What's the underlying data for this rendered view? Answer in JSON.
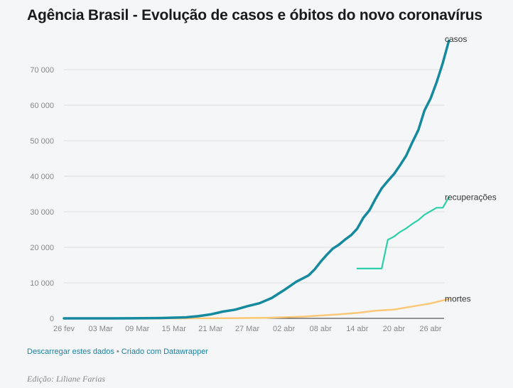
{
  "title": "Agência Brasil - Evolução de casos e óbitos do novo coronavírus",
  "footer": {
    "download_label": "Descarregar estes dados",
    "separator": "•",
    "created_label": "Criado com Datawrapper"
  },
  "credit": "Edição: Liliane Farias",
  "chart_data": {
    "type": "line",
    "title": "Agência Brasil - Evolução de casos e óbitos do novo coronavírus",
    "xlabel": "",
    "ylabel": "",
    "x_start": "2020-02-26",
    "x_ticks": [
      "26 fev",
      "03 Mar",
      "09 Mar",
      "15 Mar",
      "21 Mar",
      "27 Mar",
      "02 abr",
      "08 abr",
      "14 abr",
      "20 abr",
      "26 abr"
    ],
    "y_ticks": [
      "0",
      "10 000",
      "20 000",
      "30 000",
      "40 000",
      "50 000",
      "60 000",
      "70 000"
    ],
    "ylim": [
      0,
      70000
    ],
    "grid": "horizontal",
    "series": [
      {
        "name": "casos",
        "color": "#15899e",
        "points": [
          [
            "2020-02-26",
            1
          ],
          [
            "2020-03-01",
            2
          ],
          [
            "2020-03-05",
            8
          ],
          [
            "2020-03-08",
            25
          ],
          [
            "2020-03-10",
            34
          ],
          [
            "2020-03-13",
            98
          ],
          [
            "2020-03-15",
            200
          ],
          [
            "2020-03-17",
            291
          ],
          [
            "2020-03-19",
            621
          ],
          [
            "2020-03-21",
            1128
          ],
          [
            "2020-03-23",
            1891
          ],
          [
            "2020-03-25",
            2433
          ],
          [
            "2020-03-27",
            3417
          ],
          [
            "2020-03-29",
            4256
          ],
          [
            "2020-03-31",
            5717
          ],
          [
            "2020-04-02",
            7910
          ],
          [
            "2020-04-04",
            10278
          ],
          [
            "2020-04-06",
            12056
          ],
          [
            "2020-04-07",
            13717
          ],
          [
            "2020-04-08",
            15927
          ],
          [
            "2020-04-09",
            17857
          ],
          [
            "2020-04-10",
            19638
          ],
          [
            "2020-04-11",
            20727
          ],
          [
            "2020-04-12",
            22169
          ],
          [
            "2020-04-13",
            23430
          ],
          [
            "2020-04-14",
            25262
          ],
          [
            "2020-04-15",
            28320
          ],
          [
            "2020-04-16",
            30425
          ],
          [
            "2020-04-17",
            33682
          ],
          [
            "2020-04-18",
            36599
          ],
          [
            "2020-04-19",
            38654
          ],
          [
            "2020-04-20",
            40581
          ],
          [
            "2020-04-21",
            43079
          ],
          [
            "2020-04-22",
            45757
          ],
          [
            "2020-04-23",
            49492
          ],
          [
            "2020-04-24",
            52995
          ],
          [
            "2020-04-25",
            58509
          ],
          [
            "2020-04-26",
            61888
          ],
          [
            "2020-04-27",
            66501
          ],
          [
            "2020-04-28",
            71886
          ],
          [
            "2020-04-29",
            78162
          ]
        ]
      },
      {
        "name": "recuperações",
        "color": "#2cd0a8",
        "points": [
          [
            "2020-04-14",
            14026
          ],
          [
            "2020-04-15",
            14026
          ],
          [
            "2020-04-16",
            14026
          ],
          [
            "2020-04-17",
            14026
          ],
          [
            "2020-04-18",
            14026
          ],
          [
            "2020-04-19",
            22130
          ],
          [
            "2020-04-20",
            22991
          ],
          [
            "2020-04-21",
            24325
          ],
          [
            "2020-04-22",
            25318
          ],
          [
            "2020-04-23",
            26573
          ],
          [
            "2020-04-24",
            27655
          ],
          [
            "2020-04-25",
            29160
          ],
          [
            "2020-04-26",
            30152
          ],
          [
            "2020-04-27",
            31142
          ],
          [
            "2020-04-28",
            31142
          ],
          [
            "2020-04-29",
            34132
          ]
        ]
      },
      {
        "name": "mortes",
        "color": "#fbc878",
        "points": [
          [
            "2020-02-26",
            0
          ],
          [
            "2020-03-17",
            1
          ],
          [
            "2020-03-21",
            18
          ],
          [
            "2020-03-24",
            46
          ],
          [
            "2020-03-27",
            92
          ],
          [
            "2020-03-30",
            159
          ],
          [
            "2020-04-02",
            299
          ],
          [
            "2020-04-05",
            486
          ],
          [
            "2020-04-08",
            800
          ],
          [
            "2020-04-11",
            1124
          ],
          [
            "2020-04-14",
            1532
          ],
          [
            "2020-04-17",
            2141
          ],
          [
            "2020-04-20",
            2484
          ],
          [
            "2020-04-23",
            3331
          ],
          [
            "2020-04-26",
            4205
          ],
          [
            "2020-04-29",
            5466
          ]
        ]
      }
    ]
  }
}
